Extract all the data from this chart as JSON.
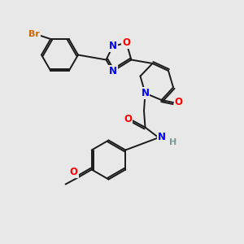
{
  "bg_color": "#e8e8e8",
  "bond_color": "#1a1a1a",
  "N_color": "#0000ff",
  "O_color": "#ff0000",
  "Br_color": "#cc6600",
  "H_color": "#7a9a9a",
  "lw": 1.4,
  "fs": 8.5,
  "xlim": [
    0,
    10
  ],
  "ylim": [
    0,
    10
  ]
}
